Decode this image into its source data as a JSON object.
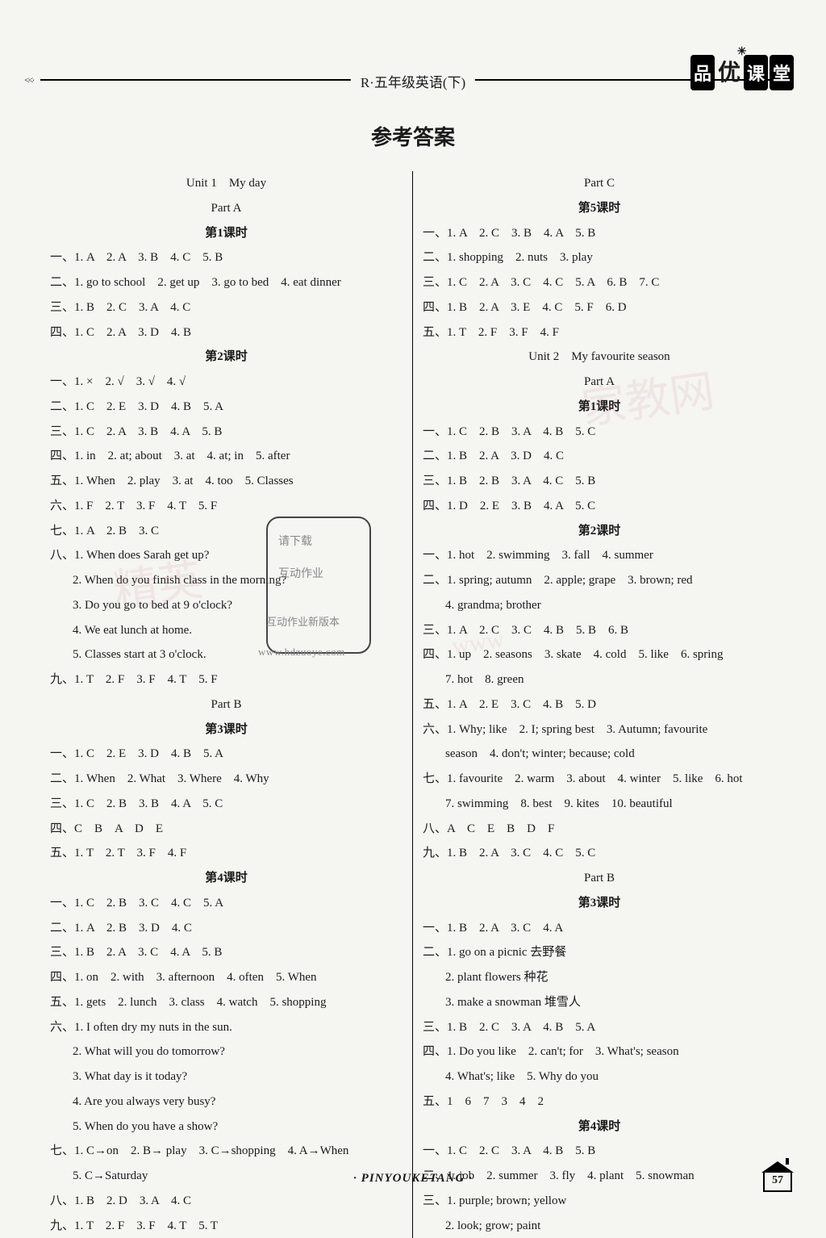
{
  "header": {
    "title": "R·五年级英语(下)",
    "arrows": "<<·",
    "logo_chars": [
      "品",
      "优",
      "课",
      "堂"
    ]
  },
  "main_title": "参考答案",
  "footer_text": "· PINYOUKETANG ·",
  "page_number": "57",
  "overlay": {
    "line1": "请下载",
    "line2": "互动作业",
    "line3": "互动作业新版本",
    "url": "www.hdzuoye.com"
  },
  "left": [
    {
      "t": "Unit 1　My day",
      "c": "center"
    },
    {
      "t": "Part A",
      "c": "center"
    },
    {
      "t": "第1课时",
      "c": "center bold"
    },
    {
      "t": "一、1. A　2. A　3. B　4. C　5. B"
    },
    {
      "t": "二、1. go to school　2. get up　3. go to bed　4. eat dinner"
    },
    {
      "t": "三、1. B　2. C　3. A　4. C"
    },
    {
      "t": "四、1. C　2. A　3. D　4. B"
    },
    {
      "t": "第2课时",
      "c": "center bold"
    },
    {
      "t": "一、1. ×　2. √　3. √　4. √"
    },
    {
      "t": "二、1. C　2. E　3. D　4. B　5. A"
    },
    {
      "t": "三、1. C　2. A　3. B　4. A　5. B"
    },
    {
      "t": "四、1. in　2. at; about　3. at　4. at; in　5. after"
    },
    {
      "t": "五、1. When　2. play　3. at　4. too　5. Classes"
    },
    {
      "t": "六、1. F　2. T　3. F　4. T　5. F"
    },
    {
      "t": "七、1. A　2. B　3. C"
    },
    {
      "t": "八、1. When does Sarah get up?"
    },
    {
      "t": "2. When do you finish class in the morning?",
      "c": "indent"
    },
    {
      "t": "3. Do you go to bed at 9 o'clock?",
      "c": "indent"
    },
    {
      "t": "4. We eat lunch at home.",
      "c": "indent"
    },
    {
      "t": "5. Classes start at 3 o'clock.",
      "c": "indent"
    },
    {
      "t": "九、1. T　2. F　3. F　4. T　5. F"
    },
    {
      "t": "Part B",
      "c": "center"
    },
    {
      "t": "第3课时",
      "c": "center bold"
    },
    {
      "t": "一、1. C　2. E　3. D　4. B　5. A"
    },
    {
      "t": "二、1. When　2. What　3. Where　4. Why"
    },
    {
      "t": "三、1. C　2. B　3. B　4. A　5. C"
    },
    {
      "t": "四、C　B　A　D　E"
    },
    {
      "t": "五、1. T　2. T　3. F　4. F"
    },
    {
      "t": "第4课时",
      "c": "center bold"
    },
    {
      "t": "一、1. C　2. B　3. C　4. C　5. A"
    },
    {
      "t": "二、1. A　2. B　3. D　4. C"
    },
    {
      "t": "三、1. B　2. A　3. C　4. A　5. B"
    },
    {
      "t": "四、1. on　2. with　3. afternoon　4. often　5. When"
    },
    {
      "t": "五、1. gets　2. lunch　3. class　4. watch　5. shopping"
    },
    {
      "t": "六、1. I often dry my nuts in the sun."
    },
    {
      "t": "2. What will you do tomorrow?",
      "c": "indent"
    },
    {
      "t": "3. What day is it today?",
      "c": "indent"
    },
    {
      "t": "4. Are you always very busy?",
      "c": "indent"
    },
    {
      "t": "5. When do you have a show?",
      "c": "indent"
    },
    {
      "t": "七、1. C→on　2. B→ play　3. C→shopping　4. A→When"
    },
    {
      "t": "5. C→Saturday",
      "c": "indent"
    },
    {
      "t": "八、1. B　2. D　3. A　4. C"
    },
    {
      "t": "九、1. T　2. F　3. F　4. T　5. T"
    }
  ],
  "right": [
    {
      "t": "Part C",
      "c": "center"
    },
    {
      "t": "第5课时",
      "c": "center bold"
    },
    {
      "t": "一、1. A　2. C　3. B　4. A　5. B"
    },
    {
      "t": "二、1. shopping　2. nuts　3. play"
    },
    {
      "t": "三、1. C　2. A　3. C　4. C　5. A　6. B　7. C"
    },
    {
      "t": "四、1. B　2. A　3. E　4. C　5. F　6. D"
    },
    {
      "t": "五、1. T　2. F　3. F　4. F"
    },
    {
      "t": "Unit 2　My favourite season",
      "c": "center"
    },
    {
      "t": "Part A",
      "c": "center"
    },
    {
      "t": "第1课时",
      "c": "center bold"
    },
    {
      "t": "一、1. C　2. B　3. A　4. B　5. C"
    },
    {
      "t": "二、1. B　2. A　3. D　4. C"
    },
    {
      "t": "三、1. B　2. B　3. A　4. C　5. B"
    },
    {
      "t": "四、1. D　2. E　3. B　4. A　5. C"
    },
    {
      "t": "第2课时",
      "c": "center bold"
    },
    {
      "t": "一、1. hot　2. swimming　3. fall　4. summer"
    },
    {
      "t": "二、1. spring; autumn　2. apple; grape　3. brown; red"
    },
    {
      "t": "4. grandma; brother",
      "c": "indent"
    },
    {
      "t": "三、1. A　2. C　3. C　4. B　5. B　6. B"
    },
    {
      "t": "四、1. up　2. seasons　3. skate　4. cold　5. like　6. spring"
    },
    {
      "t": "7. hot　8. green",
      "c": "indent"
    },
    {
      "t": "五、1. A　2. E　3. C　4. B　5. D"
    },
    {
      "t": "六、1. Why; like　2. I; spring best　3. Autumn; favourite"
    },
    {
      "t": "season　4. don't; winter; because; cold",
      "c": "indent"
    },
    {
      "t": "七、1. favourite　2. warm　3. about　4. winter　5. like　6. hot"
    },
    {
      "t": "7. swimming　8. best　9. kites　10. beautiful",
      "c": "indent"
    },
    {
      "t": "八、A　C　E　B　D　F"
    },
    {
      "t": "九、1. B　2. A　3. C　4. C　5. C"
    },
    {
      "t": "Part B",
      "c": "center"
    },
    {
      "t": "第3课时",
      "c": "center bold"
    },
    {
      "t": "一、1. B　2. A　3. C　4. A"
    },
    {
      "t": "二、1. go on a picnic 去野餐"
    },
    {
      "t": "2. plant flowers 种花",
      "c": "indent"
    },
    {
      "t": "3. make a snowman 堆雪人",
      "c": "indent"
    },
    {
      "t": "三、1. B　2. C　3. A　4. B　5. A"
    },
    {
      "t": "四、1. Do you like　2. can't; for　3. What's; season"
    },
    {
      "t": "4. What's; like　5. Why do you",
      "c": "indent"
    },
    {
      "t": "五、1　6　7　3　4　2"
    },
    {
      "t": "第4课时",
      "c": "center bold"
    },
    {
      "t": "一、1. C　2. C　3. A　4. B　5. B"
    },
    {
      "t": "二、1. job　2. summer　3. fly　4. plant　5. snowman"
    },
    {
      "t": "三、1. purple; brown; yellow"
    },
    {
      "t": "2. look; grow; paint",
      "c": "indent"
    }
  ]
}
